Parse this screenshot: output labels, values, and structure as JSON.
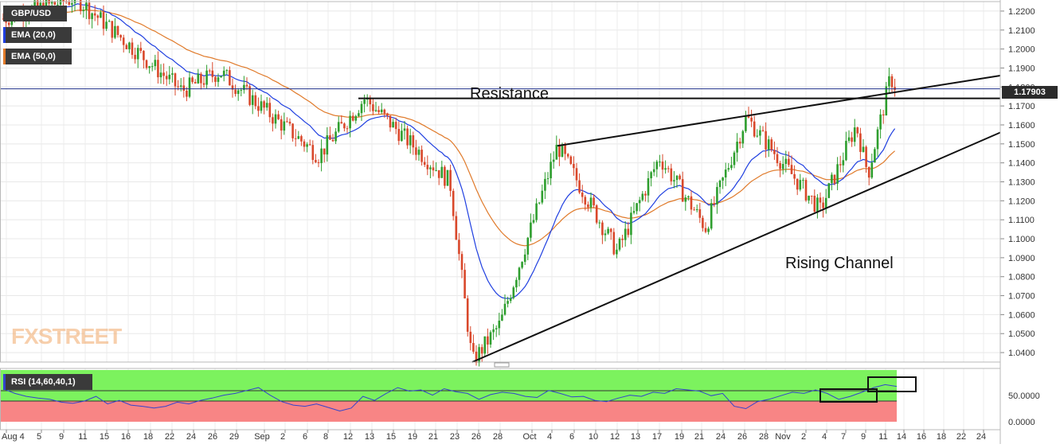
{
  "legend": {
    "symbol": "GBP/USD",
    "ema20_label": "EMA (20,0)",
    "ema50_label": "EMA (50,0)",
    "rsi_label": "RSI (14,60,40,1)"
  },
  "annotations": {
    "resistance": "Resistance",
    "channel": "Rising Channel"
  },
  "watermark": "FXSTREET",
  "last_price_label": "1.17903",
  "colors": {
    "ema20": "#1f3fe0",
    "ema50": "#e07a2a",
    "rsi_line": "#3344cc",
    "rsi_upper_zone": "#7cf25e",
    "rsi_lower_zone": "#f88585",
    "candle_up": "#2e9e2e",
    "candle_down": "#d9482b",
    "last_price_line": "#1e2f8a"
  },
  "chart_data": [
    {
      "type": "candlestick",
      "title": "GBP/USD",
      "y_ticks": [
        "1.2200",
        "1.2100",
        "1.2000",
        "1.1900",
        "1.1800",
        "1.1700",
        "1.1600",
        "1.1500",
        "1.1400",
        "1.1300",
        "1.1200",
        "1.1100",
        "1.1000",
        "1.0900",
        "1.0800",
        "1.0700",
        "1.0600",
        "1.0500",
        "1.0400"
      ],
      "ylim": [
        1.035,
        1.225
      ],
      "x_ticks": [
        "Aug 4",
        "5",
        "9",
        "11",
        "15",
        "16",
        "18",
        "22",
        "24",
        "26",
        "29",
        "Sep",
        "2",
        "6",
        "8",
        "12",
        "13",
        "15",
        "19",
        "21",
        "23",
        "26",
        "28",
        "Oct",
        "4",
        "6",
        "10",
        "12",
        "13",
        "17",
        "19",
        "21",
        "24",
        "26",
        "28",
        "Nov",
        "2",
        "4",
        "7",
        "9",
        "11",
        "14",
        "16",
        "18",
        "22",
        "24"
      ],
      "series": [
        {
          "name": "EMA (20,0)"
        },
        {
          "name": "EMA (50,0)"
        }
      ],
      "last_price": 1.17903,
      "key_points": [
        {
          "date": "Aug 4",
          "price": 1.216
        },
        {
          "date": "Aug 10",
          "price": 1.227
        },
        {
          "date": "Aug 22",
          "price": 1.178
        },
        {
          "date": "Aug 26",
          "price": 1.188
        },
        {
          "date": "Sep 7",
          "price": 1.144
        },
        {
          "date": "Sep 13",
          "price": 1.174
        },
        {
          "date": "Sep 21",
          "price": 1.13
        },
        {
          "date": "Sep 26",
          "price": 1.035
        },
        {
          "date": "Sep 28",
          "price": 1.055
        },
        {
          "date": "Oct 4",
          "price": 1.149
        },
        {
          "date": "Oct 12",
          "price": 1.093
        },
        {
          "date": "Oct 17",
          "price": 1.143
        },
        {
          "date": "Oct 21",
          "price": 1.106
        },
        {
          "date": "Oct 26",
          "price": 1.164
        },
        {
          "date": "Nov 3",
          "price": 1.115
        },
        {
          "date": "Nov 8",
          "price": 1.16
        },
        {
          "date": "Nov 10",
          "price": 1.134
        },
        {
          "date": "Nov 11",
          "price": 1.185
        },
        {
          "date": "Nov 14",
          "price": 1.179
        }
      ],
      "grid": true
    },
    {
      "type": "line",
      "title": "RSI (14,60,40,1)",
      "y_ticks": [
        "50.0000",
        "0.0000"
      ],
      "ylim": [
        0,
        100
      ],
      "upper_level": 60,
      "lower_level": 40,
      "series": [
        {
          "name": "RSI (14,60,40,1)",
          "values": [
            68,
            60,
            55,
            52,
            50,
            45,
            43,
            47,
            55,
            42,
            48,
            40,
            38,
            35,
            38,
            45,
            42,
            48,
            52,
            57,
            60,
            65,
            70,
            57,
            46,
            40,
            38,
            42,
            36,
            30,
            35,
            55,
            48,
            60,
            70,
            64,
            66,
            57,
            68,
            63,
            60,
            50,
            58,
            62,
            60,
            55,
            53,
            65,
            60,
            54,
            55,
            48,
            46,
            52,
            57,
            55,
            62,
            60,
            68,
            66,
            64,
            56,
            60,
            38,
            34,
            46,
            50,
            56,
            62,
            60,
            66,
            60,
            50,
            55,
            62,
            70,
            75,
            72
          ]
        }
      ]
    }
  ]
}
